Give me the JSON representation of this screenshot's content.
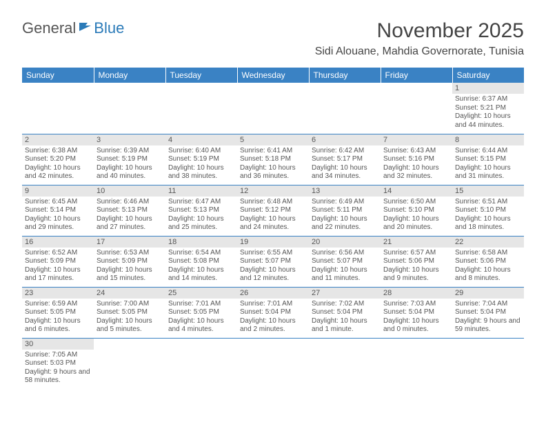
{
  "logo": {
    "text1": "General",
    "text2": "Blue"
  },
  "header": {
    "month_title": "November 2025",
    "location": "Sidi Alouane, Mahdia Governorate, Tunisia"
  },
  "colors": {
    "header_bg": "#3a82c4",
    "header_text": "#ffffff",
    "daynum_bg": "#e6e6e6",
    "cell_border": "#3a82c4",
    "text": "#555555"
  },
  "days_of_week": [
    "Sunday",
    "Monday",
    "Tuesday",
    "Wednesday",
    "Thursday",
    "Friday",
    "Saturday"
  ],
  "weeks": [
    [
      null,
      null,
      null,
      null,
      null,
      null,
      {
        "n": "1",
        "sr": "Sunrise: 6:37 AM",
        "ss": "Sunset: 5:21 PM",
        "dl": "Daylight: 10 hours and 44 minutes."
      }
    ],
    [
      {
        "n": "2",
        "sr": "Sunrise: 6:38 AM",
        "ss": "Sunset: 5:20 PM",
        "dl": "Daylight: 10 hours and 42 minutes."
      },
      {
        "n": "3",
        "sr": "Sunrise: 6:39 AM",
        "ss": "Sunset: 5:19 PM",
        "dl": "Daylight: 10 hours and 40 minutes."
      },
      {
        "n": "4",
        "sr": "Sunrise: 6:40 AM",
        "ss": "Sunset: 5:19 PM",
        "dl": "Daylight: 10 hours and 38 minutes."
      },
      {
        "n": "5",
        "sr": "Sunrise: 6:41 AM",
        "ss": "Sunset: 5:18 PM",
        "dl": "Daylight: 10 hours and 36 minutes."
      },
      {
        "n": "6",
        "sr": "Sunrise: 6:42 AM",
        "ss": "Sunset: 5:17 PM",
        "dl": "Daylight: 10 hours and 34 minutes."
      },
      {
        "n": "7",
        "sr": "Sunrise: 6:43 AM",
        "ss": "Sunset: 5:16 PM",
        "dl": "Daylight: 10 hours and 32 minutes."
      },
      {
        "n": "8",
        "sr": "Sunrise: 6:44 AM",
        "ss": "Sunset: 5:15 PM",
        "dl": "Daylight: 10 hours and 31 minutes."
      }
    ],
    [
      {
        "n": "9",
        "sr": "Sunrise: 6:45 AM",
        "ss": "Sunset: 5:14 PM",
        "dl": "Daylight: 10 hours and 29 minutes."
      },
      {
        "n": "10",
        "sr": "Sunrise: 6:46 AM",
        "ss": "Sunset: 5:13 PM",
        "dl": "Daylight: 10 hours and 27 minutes."
      },
      {
        "n": "11",
        "sr": "Sunrise: 6:47 AM",
        "ss": "Sunset: 5:13 PM",
        "dl": "Daylight: 10 hours and 25 minutes."
      },
      {
        "n": "12",
        "sr": "Sunrise: 6:48 AM",
        "ss": "Sunset: 5:12 PM",
        "dl": "Daylight: 10 hours and 24 minutes."
      },
      {
        "n": "13",
        "sr": "Sunrise: 6:49 AM",
        "ss": "Sunset: 5:11 PM",
        "dl": "Daylight: 10 hours and 22 minutes."
      },
      {
        "n": "14",
        "sr": "Sunrise: 6:50 AM",
        "ss": "Sunset: 5:10 PM",
        "dl": "Daylight: 10 hours and 20 minutes."
      },
      {
        "n": "15",
        "sr": "Sunrise: 6:51 AM",
        "ss": "Sunset: 5:10 PM",
        "dl": "Daylight: 10 hours and 18 minutes."
      }
    ],
    [
      {
        "n": "16",
        "sr": "Sunrise: 6:52 AM",
        "ss": "Sunset: 5:09 PM",
        "dl": "Daylight: 10 hours and 17 minutes."
      },
      {
        "n": "17",
        "sr": "Sunrise: 6:53 AM",
        "ss": "Sunset: 5:09 PM",
        "dl": "Daylight: 10 hours and 15 minutes."
      },
      {
        "n": "18",
        "sr": "Sunrise: 6:54 AM",
        "ss": "Sunset: 5:08 PM",
        "dl": "Daylight: 10 hours and 14 minutes."
      },
      {
        "n": "19",
        "sr": "Sunrise: 6:55 AM",
        "ss": "Sunset: 5:07 PM",
        "dl": "Daylight: 10 hours and 12 minutes."
      },
      {
        "n": "20",
        "sr": "Sunrise: 6:56 AM",
        "ss": "Sunset: 5:07 PM",
        "dl": "Daylight: 10 hours and 11 minutes."
      },
      {
        "n": "21",
        "sr": "Sunrise: 6:57 AM",
        "ss": "Sunset: 5:06 PM",
        "dl": "Daylight: 10 hours and 9 minutes."
      },
      {
        "n": "22",
        "sr": "Sunrise: 6:58 AM",
        "ss": "Sunset: 5:06 PM",
        "dl": "Daylight: 10 hours and 8 minutes."
      }
    ],
    [
      {
        "n": "23",
        "sr": "Sunrise: 6:59 AM",
        "ss": "Sunset: 5:05 PM",
        "dl": "Daylight: 10 hours and 6 minutes."
      },
      {
        "n": "24",
        "sr": "Sunrise: 7:00 AM",
        "ss": "Sunset: 5:05 PM",
        "dl": "Daylight: 10 hours and 5 minutes."
      },
      {
        "n": "25",
        "sr": "Sunrise: 7:01 AM",
        "ss": "Sunset: 5:05 PM",
        "dl": "Daylight: 10 hours and 4 minutes."
      },
      {
        "n": "26",
        "sr": "Sunrise: 7:01 AM",
        "ss": "Sunset: 5:04 PM",
        "dl": "Daylight: 10 hours and 2 minutes."
      },
      {
        "n": "27",
        "sr": "Sunrise: 7:02 AM",
        "ss": "Sunset: 5:04 PM",
        "dl": "Daylight: 10 hours and 1 minute."
      },
      {
        "n": "28",
        "sr": "Sunrise: 7:03 AM",
        "ss": "Sunset: 5:04 PM",
        "dl": "Daylight: 10 hours and 0 minutes."
      },
      {
        "n": "29",
        "sr": "Sunrise: 7:04 AM",
        "ss": "Sunset: 5:04 PM",
        "dl": "Daylight: 9 hours and 59 minutes."
      }
    ],
    [
      {
        "n": "30",
        "sr": "Sunrise: 7:05 AM",
        "ss": "Sunset: 5:03 PM",
        "dl": "Daylight: 9 hours and 58 minutes."
      },
      null,
      null,
      null,
      null,
      null,
      null
    ]
  ]
}
